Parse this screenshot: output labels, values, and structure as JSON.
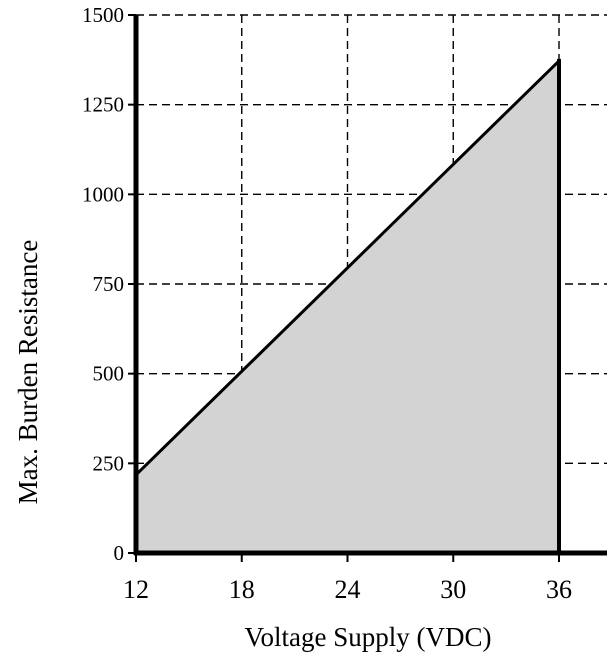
{
  "chart_data": {
    "type": "area",
    "title": "",
    "xlabel": "Voltage Supply (VDC)",
    "ylabel": "Max. Burden Resistance",
    "xlim": [
      12,
      36
    ],
    "ylim": [
      0,
      1500
    ],
    "x_ticks": [
      "12",
      "18",
      "24",
      "30",
      "36"
    ],
    "y_ticks": [
      "0",
      "250",
      "500",
      "750",
      "1000",
      "1250",
      "1500"
    ],
    "grid": true,
    "grid_style": "dashed",
    "fill_color": "#d3d3d3",
    "line_color": "#000000",
    "series": [
      {
        "x": [
          12,
          36
        ],
        "values": [
          218,
          1372
        ]
      }
    ]
  }
}
